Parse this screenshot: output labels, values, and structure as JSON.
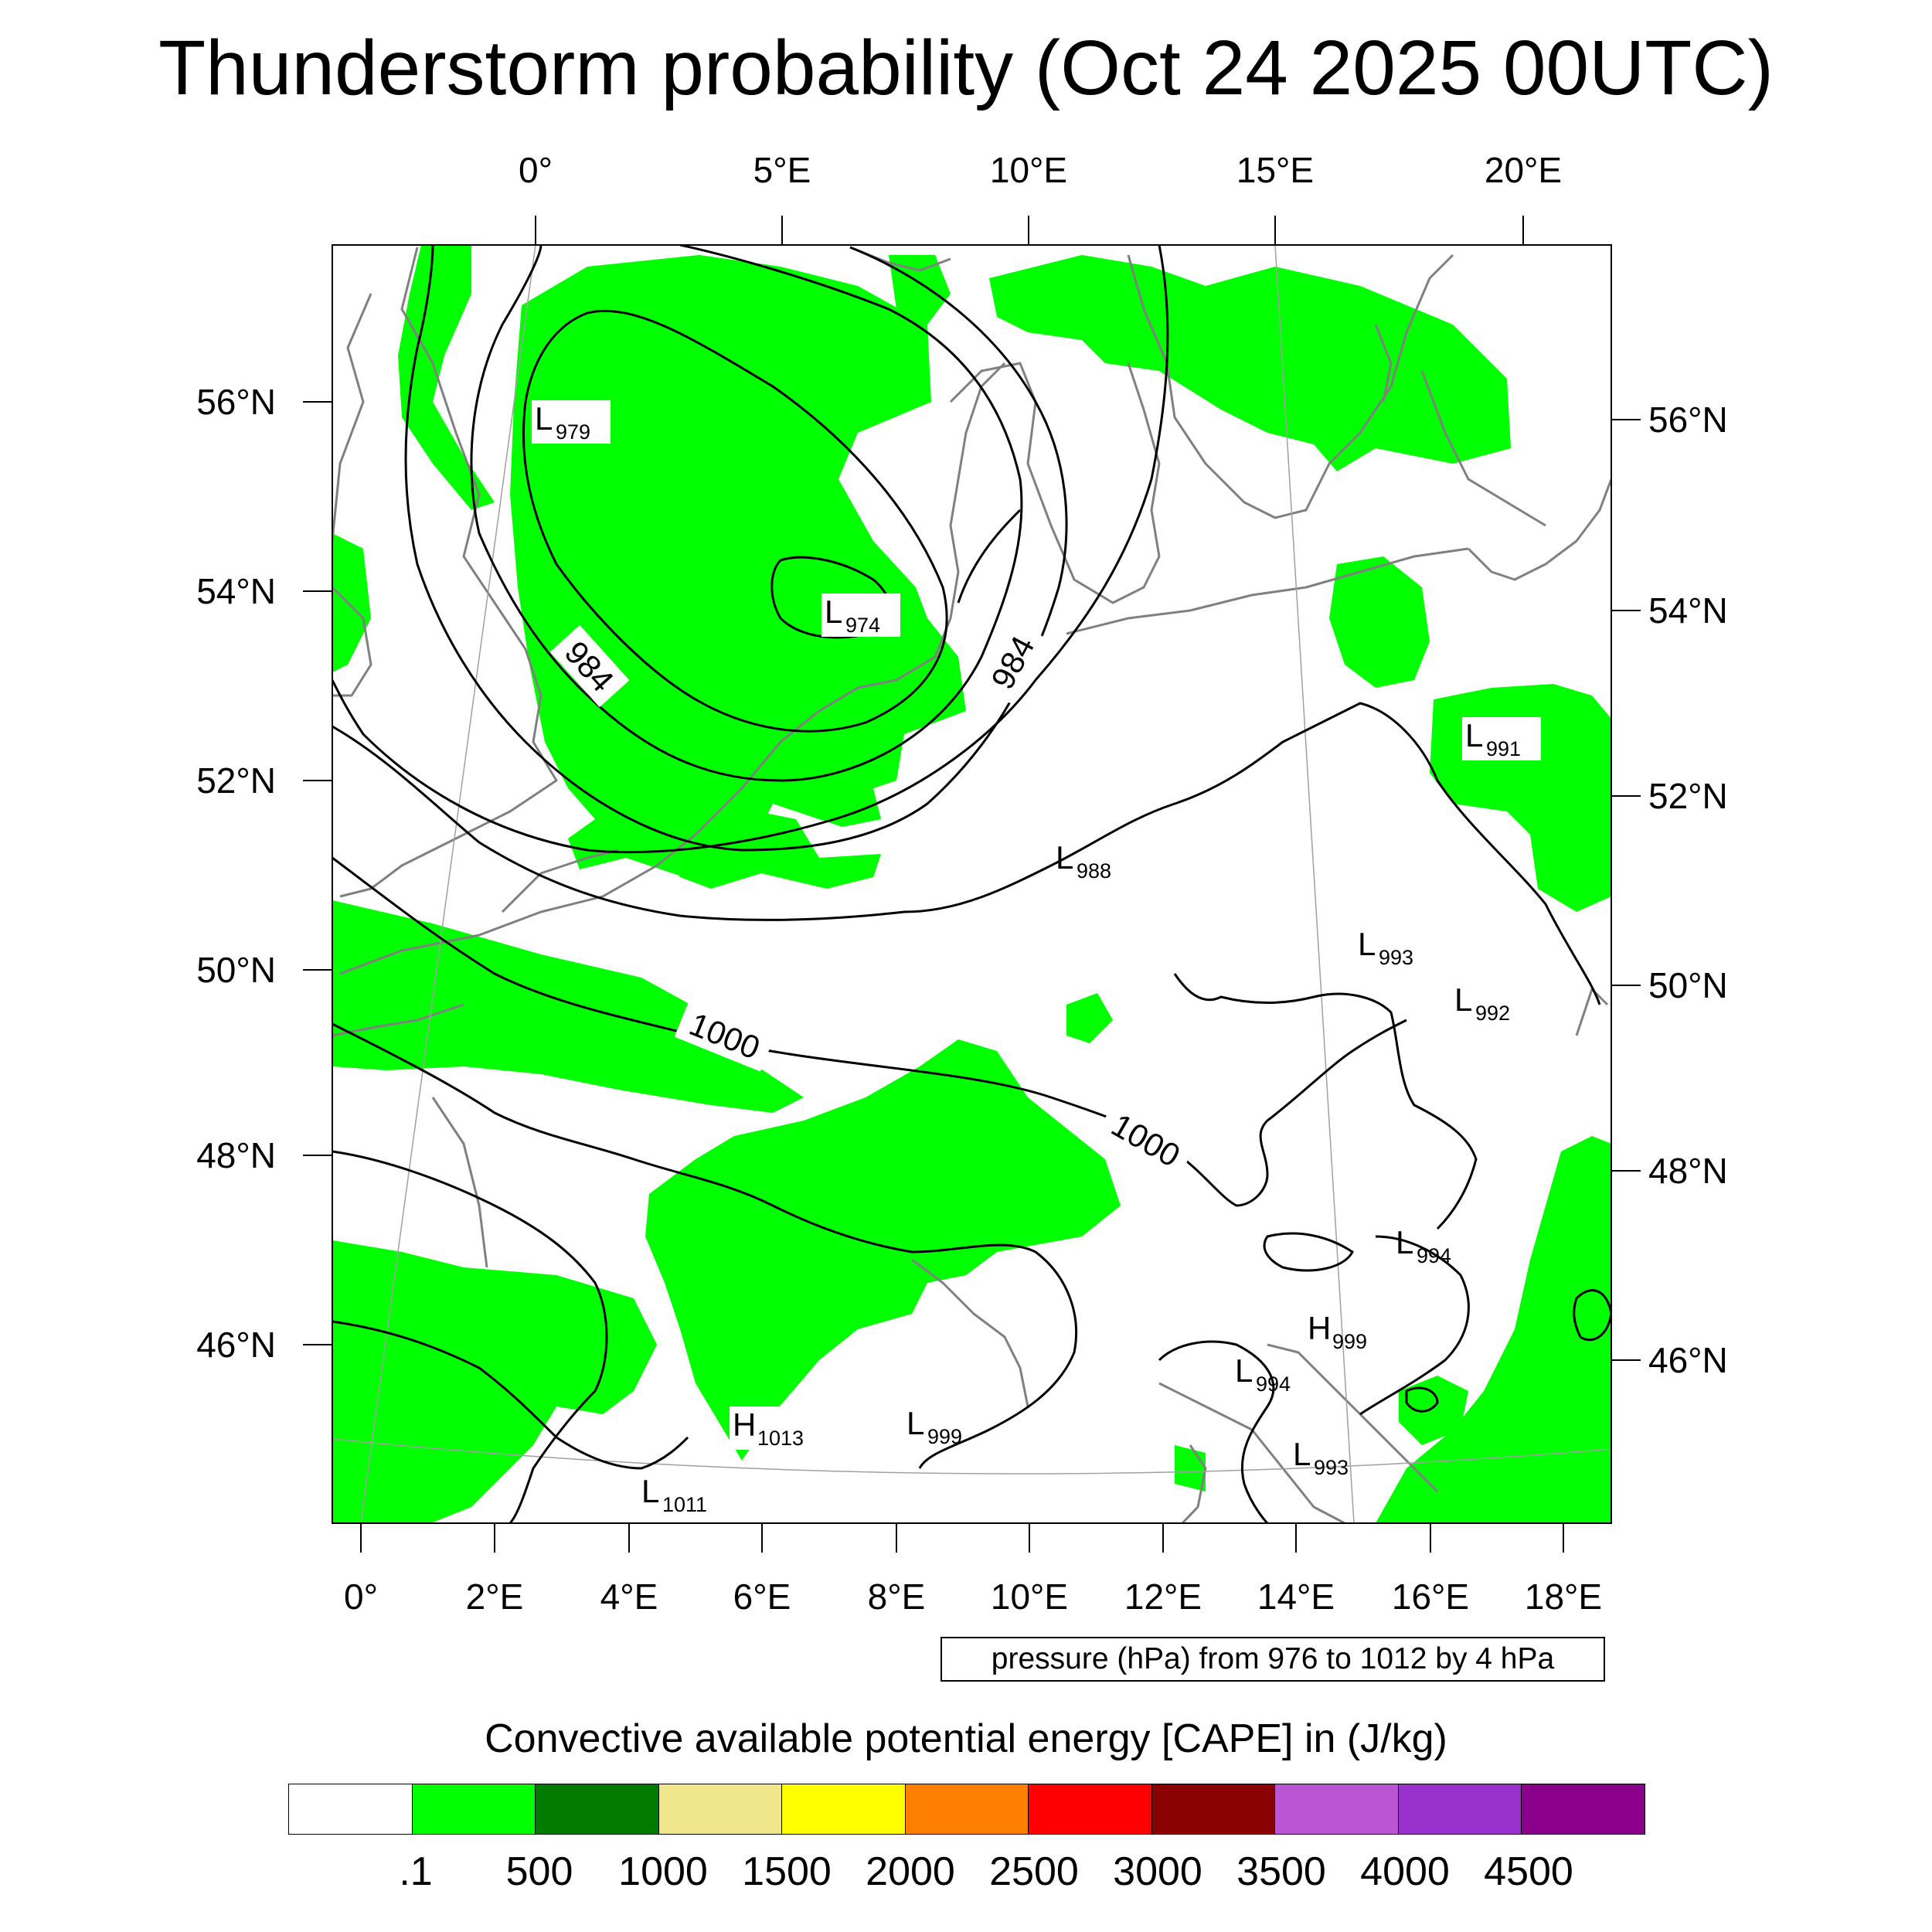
{
  "title": "Thunderstorm probability (Oct 24 2025 00UTC)",
  "map": {
    "top_lon_labels": [
      "0°",
      "5°E",
      "10°E",
      "15°E",
      "20°E"
    ],
    "bottom_lon_labels": [
      "0°",
      "2°E",
      "4°E",
      "6°E",
      "8°E",
      "10°E",
      "12°E",
      "14°E",
      "16°E",
      "18°E"
    ],
    "left_lat_labels": [
      "56°N",
      "54°N",
      "52°N",
      "50°N",
      "48°N",
      "46°N"
    ],
    "right_lat_labels": [
      "56°N",
      "54°N",
      "52°N",
      "50°N",
      "48°N",
      "46°N"
    ],
    "contour_labels": [
      "984",
      "984",
      "1000",
      "1000"
    ],
    "pressure_centers": [
      {
        "type": "L",
        "value": "979"
      },
      {
        "type": "L",
        "value": "974"
      },
      {
        "type": "L",
        "value": "991"
      },
      {
        "type": "L",
        "value": "988"
      },
      {
        "type": "L",
        "value": "993"
      },
      {
        "type": "L",
        "value": "992"
      },
      {
        "type": "L",
        "value": "994"
      },
      {
        "type": "H",
        "value": "999"
      },
      {
        "type": "L",
        "value": "994"
      },
      {
        "type": "H",
        "value": "1013"
      },
      {
        "type": "L",
        "value": "999"
      },
      {
        "type": "L",
        "value": "993"
      },
      {
        "type": "L",
        "value": "1011"
      }
    ],
    "colors": {
      "cape_fill": "#00ff00",
      "contour": "#000000",
      "coastline": "#808080"
    }
  },
  "pressure_note": "pressure (hPa) from 976 to 1012 by 4 hPa",
  "colorbar": {
    "title": "Convective available potential energy [CAPE] in (J/kg)",
    "colors": [
      "#ffffff",
      "#00ff00",
      "#007b00",
      "#f0e68c",
      "#ffff00",
      "#ff8000",
      "#ff0000",
      "#8b0000",
      "#ba55d3",
      "#9932cc",
      "#8b008b"
    ],
    "labels": [
      ".1",
      "500",
      "1000",
      "1500",
      "2000",
      "2500",
      "3000",
      "3500",
      "4000",
      "4500"
    ]
  }
}
